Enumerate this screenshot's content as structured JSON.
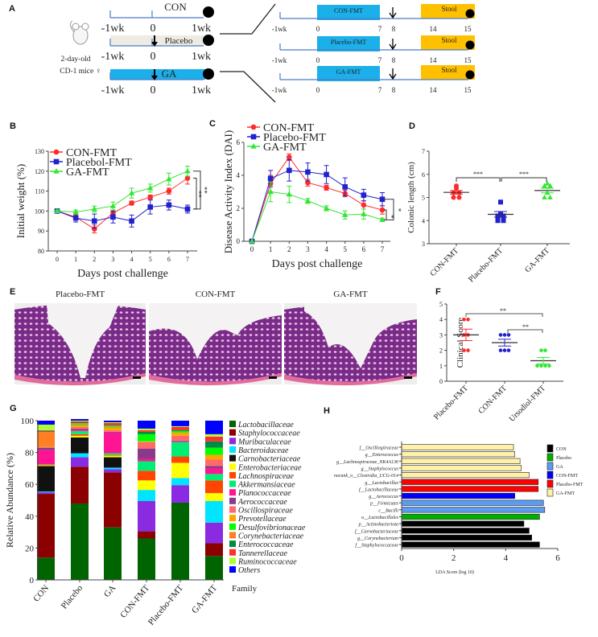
{
  "panel_letters": {
    "a": "A",
    "b": "B",
    "c": "C",
    "d": "D",
    "e": "E",
    "f": "F",
    "g": "G",
    "h": "H"
  },
  "colors": {
    "con": "#ff2b2b",
    "placebo": "#2222cc",
    "ga": "#33e633",
    "timeline_blue": "#1cb0ea",
    "placebo_box": "#eeebe2",
    "stool": "#ffc000",
    "axis": "#444444"
  },
  "panel_a": {
    "left_rows": [
      {
        "label": "CON",
        "ticks": [
          "-1wk",
          "0",
          "1wk"
        ]
      },
      {
        "label": "Placebo",
        "ticks": [
          "-1wk",
          "0",
          "1wk"
        ]
      },
      {
        "label": "GA",
        "ticks": [
          "-1wk",
          "0",
          "1wk"
        ]
      }
    ],
    "mouse_caption": [
      "2-day-old",
      "CD-1 mice ♀"
    ],
    "right_rows": [
      {
        "label": "CON-FMT",
        "stool": "Stool",
        "ticks": [
          "-1wk",
          "0",
          "7",
          "8",
          "14",
          "15"
        ]
      },
      {
        "label": "Placebo-FMT",
        "stool": "Stool",
        "ticks": [
          "-1wk",
          "0",
          "7",
          "8",
          "14",
          "15"
        ]
      },
      {
        "label": "GA-FMT",
        "stool": "Stool",
        "ticks": [
          "-1wk",
          "0",
          "7",
          "8",
          "14",
          "15"
        ]
      }
    ]
  },
  "panel_e": {
    "labels": [
      "Placebo-FMT",
      "CON-FMT",
      "GA-FMT"
    ]
  },
  "chart_data": [
    {
      "panel": "B",
      "type": "line",
      "xlabel": "Days post challenge",
      "ylabel": "Initial weight (%)",
      "x": [
        0,
        1,
        2,
        3,
        4,
        5,
        6,
        7
      ],
      "xticks": [
        "0",
        "1",
        "2",
        "3",
        "4",
        "5",
        "6",
        "7"
      ],
      "ylim": [
        80,
        130
      ],
      "yticks": [
        "80",
        "90",
        "100",
        "110",
        "120",
        "130"
      ],
      "legend_position": "top-left",
      "series": [
        {
          "name": "CON-FMT",
          "marker": "circle",
          "color": "#ff2b2b",
          "values": [
            100,
            97,
            91,
            99,
            104,
            107,
            110,
            116.5
          ],
          "sem": [
            0.5,
            1,
            2,
            1.5,
            1,
            1,
            1.5,
            3
          ]
        },
        {
          "name": "Placebol-FMT",
          "marker": "square",
          "color": "#2222cc",
          "values": [
            100,
            96.5,
            95,
            97,
            95,
            102,
            103,
            101
          ],
          "sem": [
            0.5,
            2,
            3.5,
            3,
            3,
            3.5,
            2.5,
            2
          ]
        },
        {
          "name": "GA-FMT",
          "marker": "triangle",
          "color": "#33e633",
          "values": [
            100,
            99.5,
            101,
            102.5,
            109,
            111.5,
            116,
            120
          ],
          "sem": [
            0.5,
            1,
            1.5,
            2,
            2.5,
            2,
            3,
            2.5
          ]
        }
      ],
      "significance": [
        "**",
        "**"
      ]
    },
    {
      "panel": "C",
      "type": "line",
      "xlabel": "Days post challenge",
      "ylabel": "Disease Activity Index (DAI)",
      "x": [
        0,
        1,
        2,
        3,
        4,
        5,
        6,
        7
      ],
      "xticks": [
        "0",
        "1",
        "2",
        "3",
        "4",
        "5",
        "6",
        "7"
      ],
      "ylim": [
        0,
        6
      ],
      "yticks": [
        "0",
        "2",
        "4",
        "6"
      ],
      "legend_position": "top",
      "series": [
        {
          "name": "CON-FMT",
          "marker": "circle",
          "color": "#ff2b2b",
          "values": [
            0,
            3.5,
            5.1,
            3.55,
            3.25,
            2.9,
            2.2,
            1.9
          ],
          "sem": [
            0,
            0.5,
            0.2,
            0.2,
            0.15,
            0.2,
            0.25,
            0.25
          ]
        },
        {
          "name": "Placebo-FMT",
          "marker": "square",
          "color": "#2222cc",
          "values": [
            0,
            3.8,
            4.3,
            4.2,
            4.05,
            3.3,
            2.8,
            2.55
          ],
          "sem": [
            0,
            0.5,
            0.65,
            0.55,
            0.55,
            0.55,
            0.35,
            0.4
          ]
        },
        {
          "name": "GA-FMT",
          "marker": "triangle",
          "color": "#33e633",
          "values": [
            0,
            3.0,
            2.85,
            2.45,
            2.0,
            1.6,
            1.65,
            1.3
          ],
          "sem": [
            0,
            0.6,
            0.5,
            0.15,
            0.15,
            0.25,
            0.3,
            0.1
          ]
        }
      ],
      "significance": [
        "*",
        "*"
      ]
    },
    {
      "panel": "D",
      "type": "scatter",
      "ylabel": "Colonic length (cm)",
      "ylim": [
        3,
        7
      ],
      "yticks": [
        "3",
        "4",
        "5",
        "6",
        "7"
      ],
      "categories": [
        "CON-FMT",
        "Placebo-FMT",
        "GA-FMT"
      ],
      "groups": [
        {
          "marker": "circle",
          "color": "#ff2b2b",
          "values": [
            5.5,
            5.4,
            5.2,
            5.2,
            5.0,
            5.0
          ],
          "mean": 5.22,
          "sem": 0.08
        },
        {
          "marker": "square",
          "color": "#2222cc",
          "values": [
            4.8,
            4.3,
            4.2,
            4.2,
            4.0,
            4.0
          ],
          "mean": 4.27,
          "sem": 0.12
        },
        {
          "marker": "triangle",
          "color": "#33e633",
          "values": [
            5.5,
            5.5,
            5.6,
            5.2,
            5.0,
            5.0
          ],
          "mean": 5.3,
          "sem": 0.1
        }
      ],
      "significance": [
        "***",
        "***"
      ]
    },
    {
      "panel": "F",
      "type": "scatter",
      "ylabel": "Clinical Score",
      "ylim": [
        0,
        5
      ],
      "yticks": [
        "0",
        "1",
        "2",
        "3",
        "4",
        "5"
      ],
      "categories": [
        "Placebo-FMT",
        "CON-FMT",
        "Ursodiol-FMT"
      ],
      "groups": [
        {
          "marker": "circle",
          "color": "#ff2b2b",
          "values": [
            4,
            4,
            3,
            3,
            2,
            2
          ],
          "mean": 3.0,
          "sem": 0.37
        },
        {
          "marker": "circle",
          "color": "#2222cc",
          "values": [
            3,
            3,
            3,
            2,
            2,
            2
          ],
          "mean": 2.5,
          "sem": 0.22
        },
        {
          "marker": "circle",
          "color": "#33e633",
          "values": [
            2,
            2,
            1,
            1,
            1,
            1
          ],
          "mean": 1.33,
          "sem": 0.21
        }
      ],
      "significance": [
        "**",
        "**"
      ]
    },
    {
      "panel": "G",
      "type": "bar",
      "stacked": true,
      "ylabel": "Relative Abundance (%)",
      "xlabel": "Family",
      "ylim": [
        0,
        100
      ],
      "yticks": [
        "0",
        "20",
        "40",
        "60",
        "80",
        "100"
      ],
      "legend_position": "right",
      "categories": [
        "CON",
        "Placebo",
        "GA",
        "CON-FMT",
        "Placebo-FMT",
        "GA-FMT"
      ],
      "series": [
        {
          "name": "Lactobacillaceae",
          "color": "#006400",
          "values": [
            14,
            48,
            33,
            26,
            48.5,
            15
          ]
        },
        {
          "name": "Staphylococcaceae",
          "color": "#8b0000",
          "values": [
            40,
            23,
            34.5,
            4.5,
            0,
            8
          ]
        },
        {
          "name": "Muribaculaceae",
          "color": "#8a2be2",
          "values": [
            1,
            6,
            2,
            19,
            11,
            13
          ]
        },
        {
          "name": "Bacteroidaceae",
          "color": "#00e5ff",
          "values": [
            0.5,
            2.5,
            1,
            7,
            4.5,
            13.5
          ]
        },
        {
          "name": "Carnobacteriaceae",
          "color": "#111111",
          "values": [
            16,
            10,
            6.5,
            0,
            0,
            0
          ]
        },
        {
          "name": "Enterobacteriaceae",
          "color": "#ffff00",
          "values": [
            0.5,
            1,
            1,
            6,
            9.5,
            5
          ]
        },
        {
          "name": "Lachnospiraceae",
          "color": "#ff4500",
          "values": [
            0.3,
            1,
            0.5,
            6,
            4,
            8
          ]
        },
        {
          "name": "Akkermansiaceae",
          "color": "#00ee76",
          "values": [
            0.2,
            2,
            1,
            6,
            9,
            4
          ]
        },
        {
          "name": "Planococcaceae",
          "color": "#ff1493",
          "values": [
            9,
            1,
            13,
            1.5,
            0.5,
            3.5
          ]
        },
        {
          "name": "Aerococcaceae",
          "color": "#8b3a8b",
          "values": [
            1.5,
            0.5,
            0.5,
            6.5,
            0.5,
            1.5
          ]
        },
        {
          "name": "Oscillospiraceae",
          "color": "#ff6a6a",
          "values": [
            0.3,
            1,
            1,
            4,
            3,
            4
          ]
        },
        {
          "name": "Prevotellaceae",
          "color": "#ffa500",
          "values": [
            0.2,
            1,
            1.5,
            0.5,
            2,
            3
          ]
        },
        {
          "name": "Desulfovibrionaceae",
          "color": "#00ff00",
          "values": [
            0,
            0.5,
            0.5,
            4.5,
            1,
            4.5
          ]
        },
        {
          "name": "Corynebacteriaceae",
          "color": "#ff7f24",
          "values": [
            9.5,
            1,
            1,
            0,
            0,
            0
          ]
        },
        {
          "name": "Enterococcaceae",
          "color": "#008b45",
          "values": [
            0.5,
            0.5,
            0.5,
            1.5,
            0.5,
            4
          ]
        },
        {
          "name": "Tannerellaceae",
          "color": "#ff3030",
          "values": [
            0.5,
            0.5,
            1,
            1,
            2,
            3
          ]
        },
        {
          "name": "Ruminococcaceae",
          "color": "#adff2f",
          "values": [
            3.5,
            0.5,
            0.5,
            1,
            0.5,
            1.5
          ]
        },
        {
          "name": "Others",
          "color": "#0000ff",
          "values": [
            2.5,
            1,
            1,
            5,
            3.5,
            8.5
          ]
        }
      ]
    },
    {
      "panel": "H",
      "type": "bar",
      "orientation": "horizontal",
      "xlabel": "LDA Score (log 10)",
      "xlim": [
        0,
        6
      ],
      "xticks": [
        "0",
        "2",
        "4",
        "6"
      ],
      "legend_position": "right",
      "legend": [
        {
          "name": "CON",
          "color": "#000000"
        },
        {
          "name": "Placebo",
          "color": "#00b000"
        },
        {
          "name": "GA",
          "color": "#5b9bf0"
        },
        {
          "name": "CON-FMT",
          "color": "#0000ff"
        },
        {
          "name": "Placebo-FMT",
          "color": "#ff0000"
        },
        {
          "name": "GA-FMT",
          "color": "#fff2a8"
        }
      ],
      "bars": [
        {
          "label": "f__Oscillospiraceae",
          "group": "GA-FMT",
          "value": 4.3
        },
        {
          "label": "g__Enterococcus",
          "group": "GA-FMT",
          "value": 4.35
        },
        {
          "label": "g__Lachnospiraceae_NK4A136",
          "group": "GA-FMT",
          "value": 4.55
        },
        {
          "label": "g__Staphylococcus",
          "group": "GA-FMT",
          "value": 4.6
        },
        {
          "label": "norank_o__Clostridia_UCG-014",
          "group": "GA-FMT",
          "value": 4.9
        },
        {
          "label": "g__Lactobacillus",
          "group": "Placebo-FMT",
          "value": 5.25
        },
        {
          "label": "f__Lactobacillaceae",
          "group": "Placebo-FMT",
          "value": 5.25
        },
        {
          "label": "g__Aerococcus",
          "group": "CON-FMT",
          "value": 4.35
        },
        {
          "label": "p__Firmicutes",
          "group": "GA",
          "value": 5.45
        },
        {
          "label": "c__Bacilli",
          "group": "GA",
          "value": 5.5
        },
        {
          "label": "o__Lactobacillales",
          "group": "Placebo",
          "value": 5.3
        },
        {
          "label": "p__Actinobacteriota",
          "group": "CON",
          "value": 4.7
        },
        {
          "label": "f__Carnobacteriaceae",
          "group": "CON",
          "value": 4.9
        },
        {
          "label": "g__Corynebacterium",
          "group": "CON",
          "value": 5.0
        },
        {
          "label": "f__Staphylococcaceae",
          "group": "CON",
          "value": 5.3
        }
      ]
    }
  ]
}
